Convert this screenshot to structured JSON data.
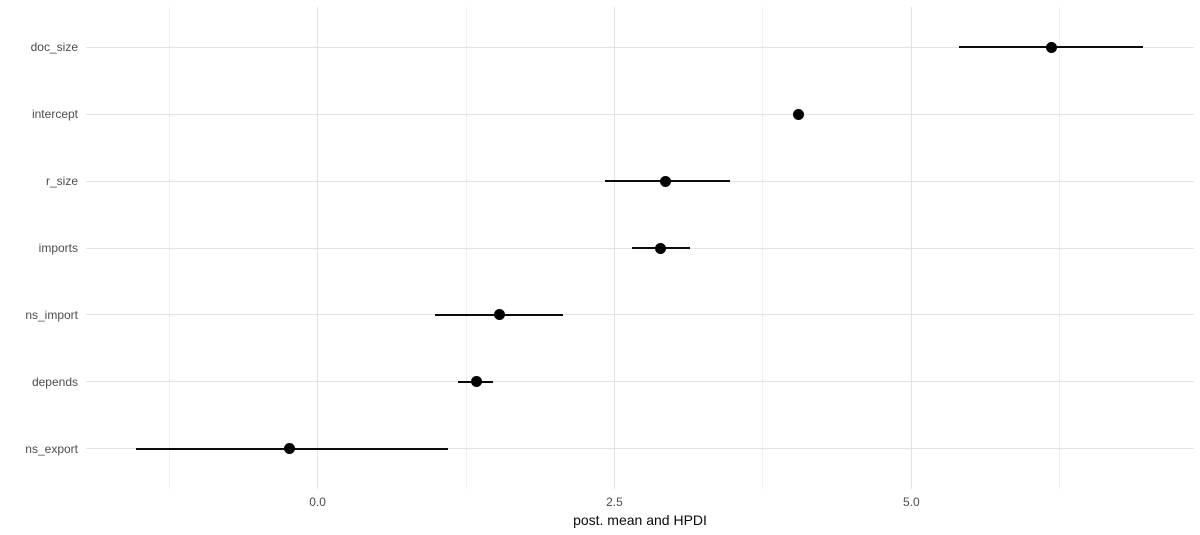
{
  "chart_data": {
    "type": "scatter",
    "variant": "dot-and-interval coefficient plot (point = posterior mean, line = HPDI)",
    "title": "",
    "xlabel": "post. mean and HPDI",
    "ylabel": "",
    "legend": false,
    "grid": true,
    "categories": [
      "doc_size",
      "intercept",
      "r_size",
      "imports",
      "ns_import",
      "depends",
      "ns_export"
    ],
    "series": [
      {
        "name": "post. mean and HPDI",
        "points": [
          {
            "label": "doc_size",
            "mean": 6.18,
            "low": 5.4,
            "high": 6.95
          },
          {
            "label": "intercept",
            "mean": 4.05,
            "low": 4.01,
            "high": 4.09
          },
          {
            "label": "r_size",
            "mean": 2.93,
            "low": 2.42,
            "high": 3.47
          },
          {
            "label": "imports",
            "mean": 2.89,
            "low": 2.65,
            "high": 3.14
          },
          {
            "label": "ns_import",
            "mean": 1.53,
            "low": 0.99,
            "high": 2.07
          },
          {
            "label": "depends",
            "mean": 1.34,
            "low": 1.18,
            "high": 1.48
          },
          {
            "label": "ns_export",
            "mean": -0.24,
            "low": -1.53,
            "high": 1.1
          }
        ]
      }
    ],
    "x_ticks": [
      0.0,
      2.5,
      5.0
    ],
    "x_tick_labels": [
      "0.0",
      "2.5",
      "5.0"
    ],
    "x_minor_ticks": [
      -1.25,
      1.25,
      3.75,
      6.25
    ],
    "xlim": [
      -1.95,
      7.38
    ],
    "colors": {
      "point": "#000000",
      "interval": "#0b0b0b",
      "grid_major": "#e3e3e3",
      "grid_minor": "#efefef",
      "tick_label": "#4d4d4d",
      "axis_title": "#0a0a0a",
      "background": "#ffffff"
    }
  }
}
